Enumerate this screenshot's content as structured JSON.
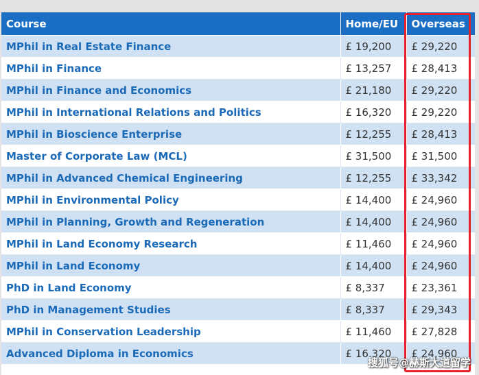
{
  "table": {
    "headers": [
      "Course",
      "Home/EU",
      "Overseas"
    ],
    "rows": [
      {
        "course": "MPhil in Real Estate Finance",
        "home": "£ 19,200",
        "overseas": "£ 29,220"
      },
      {
        "course": "MPhil in Finance",
        "home": "£ 13,257",
        "overseas": "£ 28,413"
      },
      {
        "course": "MPhil in Finance and Economics",
        "home": "£ 21,180",
        "overseas": "£ 29,220"
      },
      {
        "course": "MPhil in International Relations and Politics",
        "home": "£ 16,320",
        "overseas": "£ 29,220"
      },
      {
        "course": "MPhil in Bioscience Enterprise",
        "home": "£ 12,255",
        "overseas": "£ 28,413"
      },
      {
        "course": "Master of Corporate Law (MCL)",
        "home": "£ 31,500",
        "overseas": "£ 31,500"
      },
      {
        "course": "MPhil in Advanced Chemical Engineering",
        "home": "£ 12,255",
        "overseas": "£ 33,342"
      },
      {
        "course": "MPhil in Environmental Policy",
        "home": "£ 14,400",
        "overseas": "£ 24,960"
      },
      {
        "course": "MPhil in Planning, Growth and Regeneration",
        "home": "£ 14,400",
        "overseas": "£ 24,960"
      },
      {
        "course": "MPhil in Land Economy Research",
        "home": "£ 11,460",
        "overseas": "£ 24,960"
      },
      {
        "course": "MPhil in Land Economy",
        "home": "£ 14,400",
        "overseas": "£ 24,960"
      },
      {
        "course": "PhD in Land Economy",
        "home": "£ 8,337",
        "overseas": "£ 23,361"
      },
      {
        "course": "PhD in Management Studies",
        "home": "£ 8,337",
        "overseas": "£ 29,343"
      },
      {
        "course": "MPhil in Conservation Leadership",
        "home": "£ 11,460",
        "overseas": "£ 27,828"
      },
      {
        "course": "Advanced Diploma in Economics",
        "home": "£ 16,320",
        "overseas": "£ 24,960"
      }
    ]
  },
  "watermark": "搜狐号@赫斯大道留学",
  "colors": {
    "header_bg": "#1a6fc4",
    "row_alt": "#cfe1f3",
    "course_text": "#1b6ab8",
    "highlight": "#e8202a"
  }
}
